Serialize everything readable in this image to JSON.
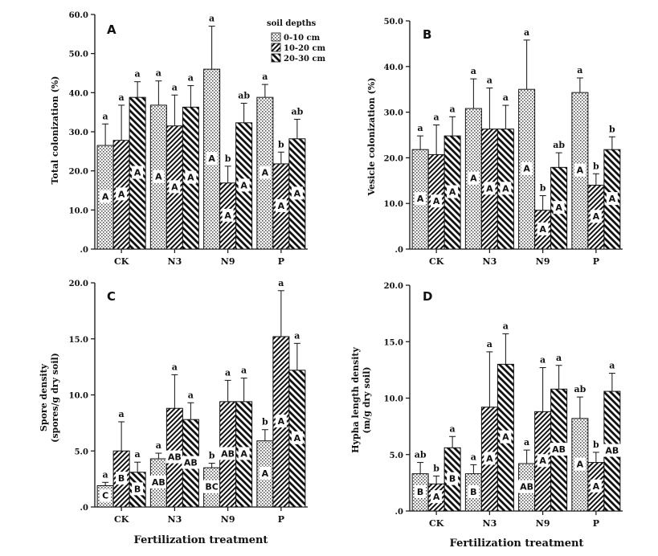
{
  "chart_data": [
    {
      "type": "bar",
      "panel_label": "A",
      "categories": [
        "CK",
        "N3",
        "N9",
        "P"
      ],
      "ylabel": "Total colonization (%)",
      "xlabel": "",
      "ylim": [
        0,
        60
      ],
      "yticks": [
        0,
        10,
        20,
        30,
        40,
        50,
        60
      ],
      "ytick_labels": [
        ".0",
        "10.0",
        "20.0",
        "30.0",
        "40.0",
        "50.0",
        "60.0"
      ],
      "legend": {
        "title": "soil depths",
        "position": "top-right"
      },
      "series": [
        {
          "name": "0-10 cm",
          "values": [
            26.5,
            36.8,
            46.0,
            38.8
          ],
          "errors": [
            5.5,
            6.2,
            11.0,
            3.3
          ],
          "letters": [
            "a",
            "a",
            "a",
            "a"
          ],
          "inner": [
            "A",
            "A",
            "A",
            "A"
          ]
        },
        {
          "name": "10-20 cm",
          "values": [
            27.8,
            31.5,
            16.9,
            21.8
          ],
          "errors": [
            9.0,
            7.9,
            4.3,
            3.0
          ],
          "letters": [
            "a",
            "a",
            "b",
            "b"
          ],
          "inner": [
            "A",
            "A",
            "A",
            "A"
          ]
        },
        {
          "name": "20-30 cm",
          "values": [
            38.8,
            36.3,
            32.3,
            28.2
          ],
          "errors": [
            4.0,
            5.5,
            5.0,
            5.0
          ],
          "letters": [
            "a",
            "a",
            "ab",
            "ab"
          ],
          "inner": [
            "A",
            "A",
            "A",
            "A"
          ]
        }
      ]
    },
    {
      "type": "bar",
      "panel_label": "B",
      "categories": [
        "CK",
        "N3",
        "N9",
        "P"
      ],
      "ylabel": "Vesicle colonization (%)",
      "xlabel": "",
      "ylim": [
        0,
        50
      ],
      "yticks": [
        0,
        10,
        20,
        30,
        40,
        50
      ],
      "ytick_labels": [
        ".0",
        "10.0",
        "20.0",
        "30.0",
        "40.0",
        "50.0"
      ],
      "series": [
        {
          "name": "0-10 cm",
          "values": [
            21.8,
            30.8,
            35.0,
            34.3
          ],
          "errors": [
            3.0,
            6.5,
            10.8,
            3.2
          ],
          "letters": [
            "a",
            "a",
            "a",
            "a"
          ],
          "inner": [
            "A",
            "A",
            "A",
            "A"
          ]
        },
        {
          "name": "10-20 cm",
          "values": [
            20.7,
            26.3,
            8.5,
            14.0
          ],
          "errors": [
            6.5,
            9.0,
            3.2,
            2.5
          ],
          "letters": [
            "a",
            "a",
            "b",
            "b"
          ],
          "inner": [
            "A",
            "A",
            "A",
            "A"
          ]
        },
        {
          "name": "20-30 cm",
          "values": [
            24.8,
            26.3,
            17.9,
            21.8
          ],
          "errors": [
            4.2,
            5.2,
            3.2,
            2.8
          ],
          "letters": [
            "a",
            "a",
            "ab",
            "b"
          ],
          "inner": [
            "A",
            "A",
            "A",
            "A"
          ]
        }
      ]
    },
    {
      "type": "bar",
      "panel_label": "C",
      "categories": [
        "CK",
        "N3",
        "N9",
        "P"
      ],
      "ylabel": "Spore density",
      "ylabel2": "(spores/g dry soil)",
      "xlabel": "Fertilization treatment",
      "ylim": [
        0,
        20
      ],
      "yticks": [
        0,
        5,
        10,
        15,
        20
      ],
      "ytick_labels": [
        ".0",
        "5.0",
        "10.0",
        "15.0",
        "20.0"
      ],
      "series": [
        {
          "name": "0-10 cm",
          "values": [
            1.9,
            4.3,
            3.5,
            5.9
          ],
          "errors": [
            0.3,
            0.5,
            0.4,
            1.0
          ],
          "letters": [
            "a",
            "a",
            "b",
            "b"
          ],
          "inner": [
            "C",
            "AB",
            "BC",
            "A"
          ]
        },
        {
          "name": "10-20 cm",
          "values": [
            5.0,
            8.8,
            9.4,
            15.2
          ],
          "errors": [
            2.6,
            3.0,
            1.9,
            4.1
          ],
          "letters": [
            "a",
            "a",
            "a",
            "a"
          ],
          "inner": [
            "B",
            "AB",
            "AB",
            "A"
          ]
        },
        {
          "name": "20-30 cm",
          "values": [
            3.1,
            7.8,
            9.4,
            12.2
          ],
          "errors": [
            0.9,
            1.5,
            2.1,
            2.4
          ],
          "letters": [
            "a",
            "a",
            "a",
            "a"
          ],
          "inner": [
            "B",
            "AB",
            "A",
            "A"
          ]
        }
      ]
    },
    {
      "type": "bar",
      "panel_label": "D",
      "categories": [
        "CK",
        "N3",
        "N9",
        "P"
      ],
      "ylabel": "Hypha length density",
      "ylabel2": "(m/g dry soil)",
      "xlabel": "Fertilization treatment",
      "ylim": [
        0,
        20
      ],
      "yticks": [
        0,
        5,
        10,
        15,
        20
      ],
      "ytick_labels": [
        ".0",
        "5.0",
        "10.0",
        "15.0",
        "20.0"
      ],
      "series": [
        {
          "name": "0-10 cm",
          "values": [
            3.3,
            3.3,
            4.2,
            8.2
          ],
          "errors": [
            1.0,
            0.8,
            1.2,
            1.9
          ],
          "letters": [
            "ab",
            "a",
            "a",
            "ab"
          ],
          "inner": [
            "B",
            "B",
            "AB",
            "A"
          ]
        },
        {
          "name": "10-20 cm",
          "values": [
            2.4,
            9.2,
            8.8,
            4.3
          ],
          "errors": [
            0.7,
            4.9,
            3.9,
            0.9
          ],
          "letters": [
            "b",
            "a",
            "a",
            "b"
          ],
          "inner": [
            "A",
            "A",
            "A",
            "A"
          ]
        },
        {
          "name": "20-30 cm",
          "values": [
            5.6,
            13.0,
            10.8,
            10.6
          ],
          "errors": [
            1.0,
            2.7,
            2.1,
            1.6
          ],
          "letters": [
            "a",
            "a",
            "a",
            "a"
          ],
          "inner": [
            "B",
            "A",
            "AB",
            "AB"
          ]
        }
      ]
    }
  ]
}
